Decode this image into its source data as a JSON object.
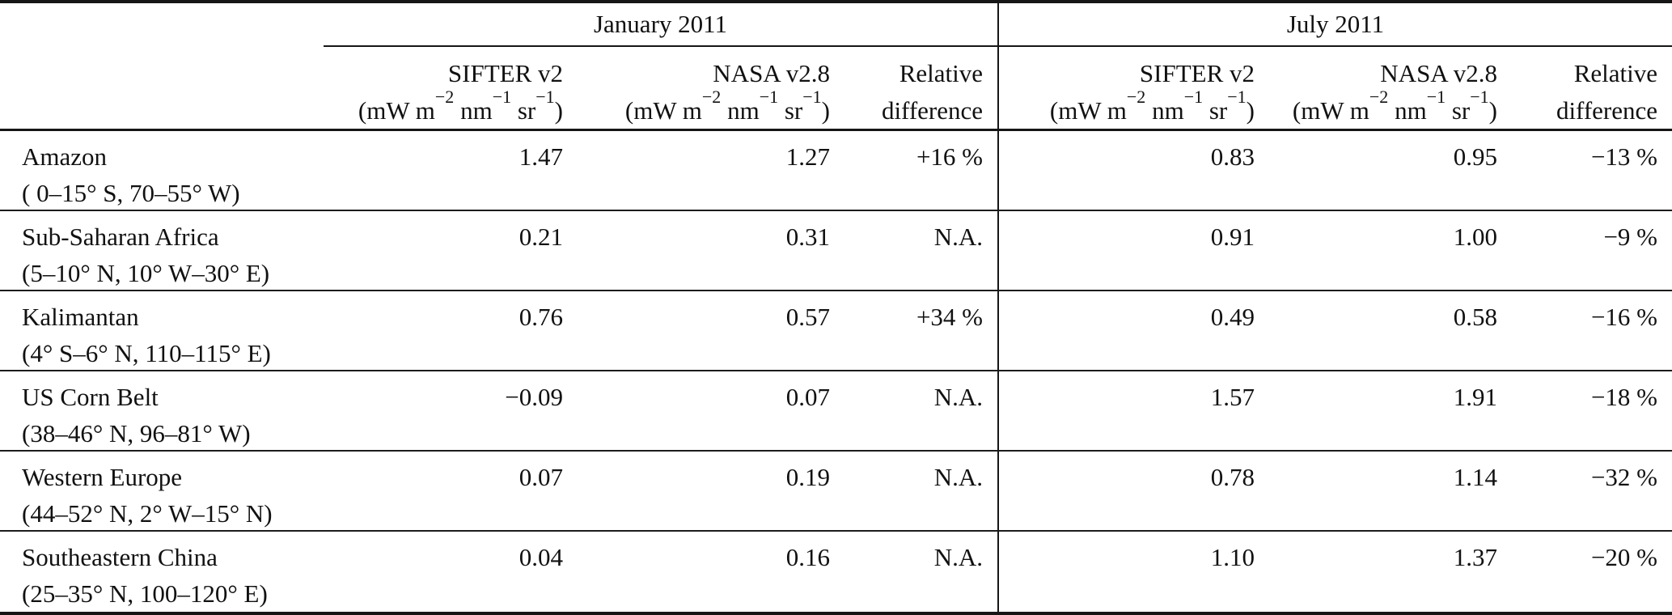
{
  "table": {
    "group_headers": {
      "january": "January 2011",
      "july": "July 2011"
    },
    "columns": {
      "sifter": "SIFTER v2",
      "nasa": "NASA v2.8",
      "relative_line1": "Relative",
      "relative_line2": "difference",
      "unit": {
        "p1": "(mW m",
        "s1": "−2",
        "p2": " nm",
        "s2": "−1",
        "p3": " sr",
        "s3": "−1",
        "p4": ")"
      }
    },
    "rows": [
      {
        "name": "Amazon",
        "coords": "( 0–15° S, 70–55° W)",
        "jan_sifter": "1.47",
        "jan_nasa": "1.27",
        "jan_rel": "+16 %",
        "jul_sifter": "0.83",
        "jul_nasa": "0.95",
        "jul_rel": "−13 %"
      },
      {
        "name": "Sub-Saharan Africa",
        "coords": "(5–10° N, 10° W–30° E)",
        "jan_sifter": "0.21",
        "jan_nasa": "0.31",
        "jan_rel": "N.A.",
        "jul_sifter": "0.91",
        "jul_nasa": "1.00",
        "jul_rel": "−9 %"
      },
      {
        "name": "Kalimantan",
        "coords": "(4° S–6° N, 110–115° E)",
        "jan_sifter": "0.76",
        "jan_nasa": "0.57",
        "jan_rel": "+34 %",
        "jul_sifter": "0.49",
        "jul_nasa": "0.58",
        "jul_rel": "−16 %"
      },
      {
        "name": "US Corn Belt",
        "coords": "(38–46° N, 96–81° W)",
        "jan_sifter": "−0.09",
        "jan_nasa": "0.07",
        "jan_rel": "N.A.",
        "jul_sifter": "1.57",
        "jul_nasa": "1.91",
        "jul_rel": "−18 %"
      },
      {
        "name": "Western Europe",
        "coords": "(44–52° N, 2° W–15° N)",
        "jan_sifter": "0.07",
        "jan_nasa": "0.19",
        "jan_rel": "N.A.",
        "jul_sifter": "0.78",
        "jul_nasa": "1.14",
        "jul_rel": "−32 %"
      },
      {
        "name": "Southeastern China",
        "coords": "(25–35° N, 100–120° E)",
        "jan_sifter": "0.04",
        "jan_nasa": "0.16",
        "jan_rel": "N.A.",
        "jul_sifter": "1.10",
        "jul_nasa": "1.37",
        "jul_rel": "−20 %"
      }
    ]
  }
}
